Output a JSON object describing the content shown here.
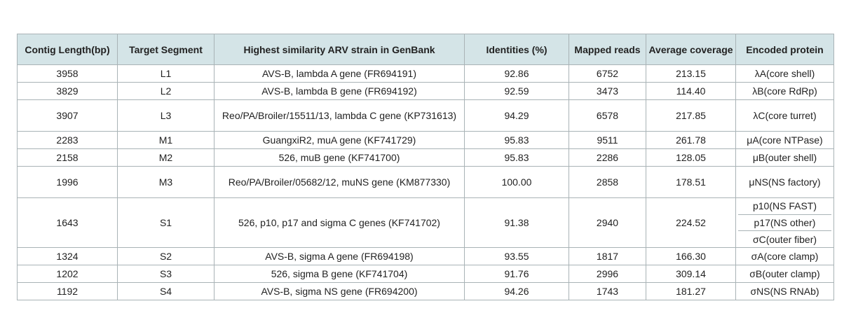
{
  "table": {
    "headers": [
      "Contig Length(bp)",
      "Target Segment",
      "Highest similarity ARV strain in GenBank",
      "Identities (%)",
      "Mapped reads",
      "Average coverage",
      "Encoded protein"
    ],
    "rows": [
      {
        "length": "3958",
        "segment": "L1",
        "strain": "AVS-B, lambda A gene (FR694191)",
        "identity": "92.86",
        "reads": "6752",
        "coverage": "213.15",
        "proteins": [
          "λA(core shell)"
        ]
      },
      {
        "length": "3829",
        "segment": "L2",
        "strain": "AVS-B, lambda B gene (FR694192)",
        "identity": "92.59",
        "reads": "3473",
        "coverage": "114.40",
        "proteins": [
          "λB(core RdRp)"
        ]
      },
      {
        "length": "3907",
        "segment": "L3",
        "strain": "Reo/PA/Broiler/15511/13, lambda C gene (KP731613)",
        "identity": "94.29",
        "reads": "6578",
        "coverage": "217.85",
        "proteins": [
          "λC(core turret)"
        ]
      },
      {
        "length": "2283",
        "segment": "M1",
        "strain": "GuangxiR2, muA gene (KF741729)",
        "identity": "95.83",
        "reads": "9511",
        "coverage": "261.78",
        "proteins": [
          "μA(core NTPase)"
        ]
      },
      {
        "length": "2158",
        "segment": "M2",
        "strain": "526, muB gene (KF741700)",
        "identity": "95.83",
        "reads": "2286",
        "coverage": "128.05",
        "proteins": [
          "μB(outer shell)"
        ]
      },
      {
        "length": "1996",
        "segment": "M3",
        "strain": "Reo/PA/Broiler/05682/12, muNS gene (KM877330)",
        "identity": "100.00",
        "reads": "2858",
        "coverage": "178.51",
        "proteins": [
          "μNS(NS factory)"
        ]
      },
      {
        "length": "1643",
        "segment": "S1",
        "strain": "526, p10, p17 and sigma C genes (KF741702)",
        "identity": "91.38",
        "reads": "2940",
        "coverage": "224.52",
        "proteins": [
          "p10(NS FAST)",
          "p17(NS other)",
          "σC(outer fiber)"
        ]
      },
      {
        "length": "1324",
        "segment": "S2",
        "strain": "AVS-B, sigma A gene (FR694198)",
        "identity": "93.55",
        "reads": "1817",
        "coverage": "166.30",
        "proteins": [
          "σA(core clamp)"
        ]
      },
      {
        "length": "1202",
        "segment": "S3",
        "strain": "526, sigma B gene (KF741704)",
        "identity": "91.76",
        "reads": "2996",
        "coverage": "309.14",
        "proteins": [
          "σB(outer clamp)"
        ]
      },
      {
        "length": "1192",
        "segment": "S4",
        "strain": "AVS-B, sigma NS gene (FR694200)",
        "identity": "94.26",
        "reads": "1743",
        "coverage": "181.27",
        "proteins": [
          "σNS(NS RNAb)"
        ]
      }
    ]
  },
  "colors": {
    "header_bg": "#d4e4e7",
    "border": "#a9b3b6",
    "text": "#222222"
  }
}
